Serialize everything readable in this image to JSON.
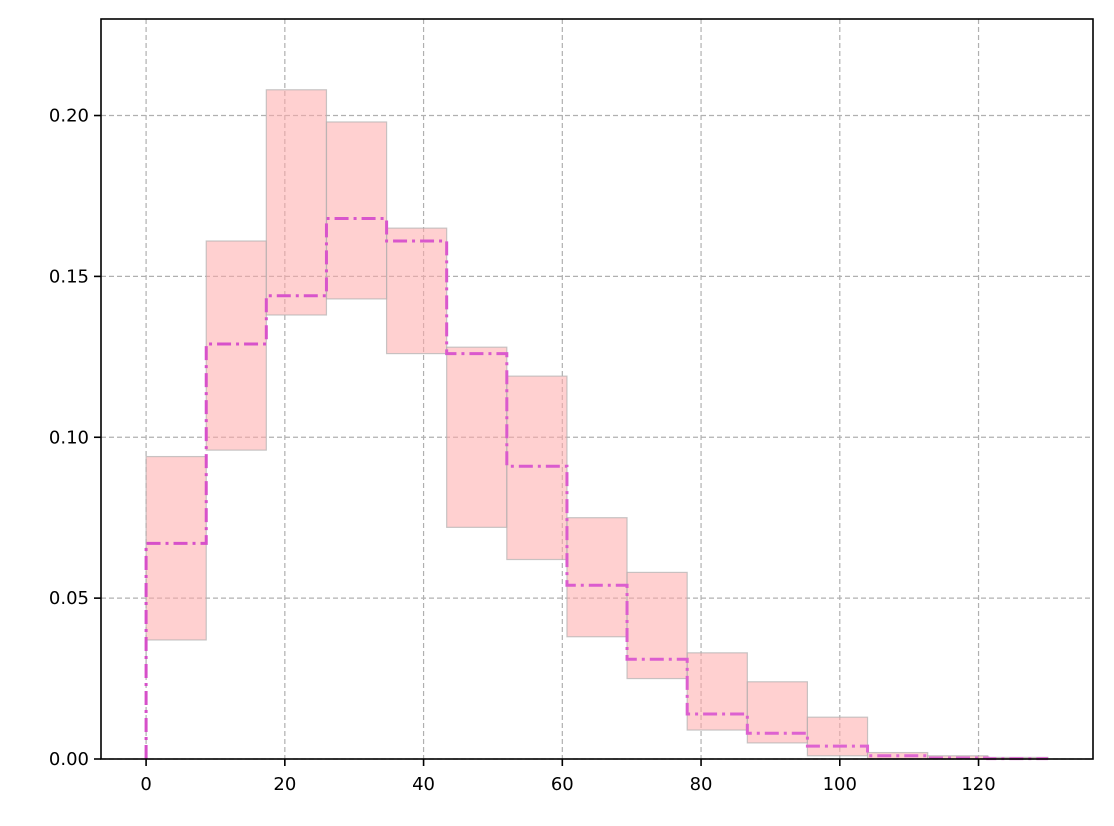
{
  "chart_data": {
    "type": "step",
    "title": "",
    "xlabel": "",
    "ylabel": "",
    "xlim": [
      -6.5,
      136.5
    ],
    "ylim": [
      0,
      0.23
    ],
    "x_ticks": [
      0,
      20,
      40,
      60,
      80,
      100,
      120
    ],
    "x_tick_labels": [
      "0",
      "20",
      "40",
      "60",
      "80",
      "100",
      "120"
    ],
    "y_ticks": [
      0.0,
      0.05,
      0.1,
      0.15,
      0.2
    ],
    "y_tick_labels": [
      "0.00",
      "0.05",
      "0.10",
      "0.15",
      "0.20"
    ],
    "grid": true,
    "legend": "none",
    "bin_edges": [
      0,
      8.67,
      17.33,
      26,
      34.67,
      43.33,
      52,
      60.67,
      69.33,
      78,
      86.67,
      95.33,
      104,
      112.67,
      121.33,
      130
    ],
    "series": [
      {
        "type": "step",
        "values": [
          0.067,
          0.129,
          0.144,
          0.168,
          0.161,
          0.126,
          0.091,
          0.054,
          0.031,
          0.014,
          0.008,
          0.004,
          0.001,
          0.0003,
          0.0001
        ],
        "lower": [
          0.037,
          0.096,
          0.138,
          0.143,
          0.126,
          0.072,
          0.062,
          0.038,
          0.025,
          0.009,
          0.005,
          0.001,
          0.0,
          0.0,
          0.0
        ],
        "upper": [
          0.094,
          0.161,
          0.208,
          0.198,
          0.165,
          0.128,
          0.119,
          0.075,
          0.058,
          0.033,
          0.024,
          0.013,
          0.002,
          0.001,
          0.0005
        ]
      }
    ],
    "colors": {
      "line_start": "#d64fc9",
      "line_end": "#e06ad4",
      "band_fill": "#ffaaaa",
      "band_fill_opacity": 0.55,
      "grid": "#b0b0b0"
    }
  }
}
